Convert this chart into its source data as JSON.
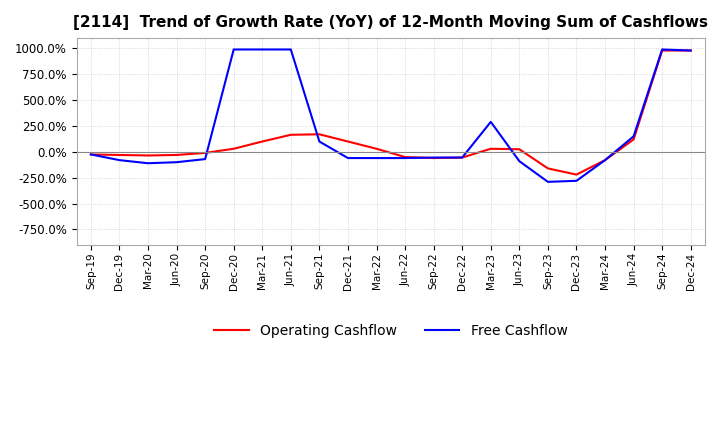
{
  "title": "[2114]  Trend of Growth Rate (YoY) of 12-Month Moving Sum of Cashflows",
  "title_fontsize": 11,
  "ylim": [
    -900,
    1100
  ],
  "yticks": [
    -750,
    -500,
    -250,
    0,
    250,
    500,
    750,
    1000
  ],
  "background_color": "#ffffff",
  "grid_color": "#cccccc",
  "grid_style": "dotted",
  "legend_labels": [
    "Operating Cashflow",
    "Free Cashflow"
  ],
  "line_colors": [
    "#ff0000",
    "#0000ff"
  ],
  "x_labels": [
    "Sep-19",
    "Dec-19",
    "Mar-20",
    "Jun-20",
    "Sep-20",
    "Dec-20",
    "Mar-21",
    "Jun-21",
    "Sep-21",
    "Dec-21",
    "Mar-22",
    "Jun-22",
    "Sep-22",
    "Dec-22",
    "Mar-23",
    "Jun-23",
    "Sep-23",
    "Dec-23",
    "Mar-24",
    "Jun-24",
    "Sep-24",
    "Dec-24"
  ],
  "operating_cashflow": [
    -25,
    -30,
    -35,
    -30,
    -10,
    30,
    100,
    165,
    170,
    100,
    30,
    -50,
    -60,
    -55,
    30,
    25,
    -160,
    -220,
    -80,
    120,
    980,
    980
  ],
  "free_cashflow": [
    -25,
    -80,
    -110,
    -100,
    -70,
    990,
    990,
    990,
    100,
    -60,
    -60,
    -60,
    -55,
    -55,
    290,
    -90,
    -290,
    -280,
    -80,
    150,
    990,
    980
  ]
}
